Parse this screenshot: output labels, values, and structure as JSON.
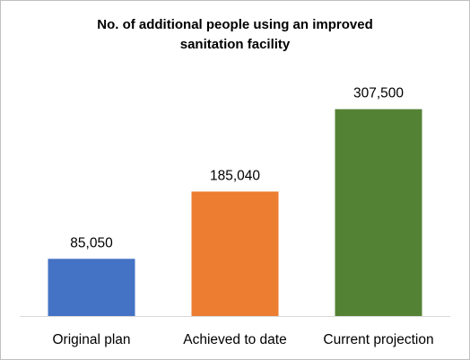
{
  "chart_data": {
    "type": "bar",
    "title_lines": [
      "No. of additional people using an improved",
      "sanitation facility"
    ],
    "categories": [
      "Original plan",
      "Achieved to date",
      "Current projection"
    ],
    "values": [
      85050,
      185040,
      307500
    ],
    "value_labels": [
      "85,050",
      "185,040",
      "307,500"
    ],
    "colors": [
      "#4472c4",
      "#ed7d31",
      "#548235"
    ],
    "ylim": [
      0,
      323000
    ],
    "grid": false,
    "legend": "none"
  }
}
